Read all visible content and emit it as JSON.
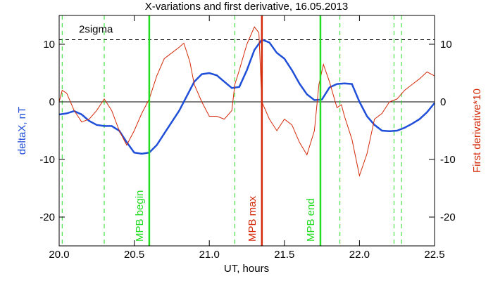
{
  "chart_data": {
    "type": "line",
    "title": "X-variations and first derivative, 16.05.2013",
    "xlabel": "UT, hours",
    "ylabel": "deltaX, nT",
    "y2label": "First derivative*10",
    "xlim": [
      20.0,
      22.5
    ],
    "xticks": [
      {
        "value": 20,
        "label": "20.0"
      },
      20.5,
      {
        "value": 21,
        "label": "21.0"
      },
      21.5,
      {
        "value": 22,
        "label": "22.0"
      },
      22.5
    ],
    "ylim": [
      -25,
      15
    ],
    "yticks": [
      10,
      0,
      -10,
      -20
    ],
    "y2lim": [
      -25,
      15
    ],
    "y2ticks": [
      10,
      0,
      -10,
      -20
    ],
    "series": [
      {
        "name": "deltaX",
        "color": "#1f4fd8",
        "x": [
          20.0,
          20.05,
          20.1,
          20.15,
          20.2,
          20.25,
          20.3,
          20.35,
          20.4,
          20.45,
          20.5,
          20.55,
          20.6,
          20.65,
          20.7,
          20.75,
          20.8,
          20.85,
          20.9,
          20.95,
          21.0,
          21.05,
          21.1,
          21.15,
          21.2,
          21.25,
          21.3,
          21.35,
          21.4,
          21.45,
          21.5,
          21.55,
          21.6,
          21.65,
          21.7,
          21.75,
          21.8,
          21.85,
          21.9,
          21.95,
          22.0,
          22.05,
          22.1,
          22.15,
          22.2,
          22.25,
          22.3,
          22.35,
          22.4,
          22.45,
          22.5
        ],
        "values": [
          -2.2,
          -2.0,
          -1.6,
          -2.2,
          -3.3,
          -4.0,
          -4.2,
          -4.2,
          -5.0,
          -7.0,
          -8.8,
          -9.0,
          -8.8,
          -7.5,
          -5.5,
          -3.5,
          -1.5,
          1.0,
          3.5,
          4.8,
          5.0,
          4.6,
          3.5,
          2.4,
          2.6,
          5.5,
          9.0,
          10.8,
          10.3,
          8.5,
          7.5,
          5.5,
          3.2,
          1.3,
          0.3,
          0.4,
          2.5,
          3.1,
          3.2,
          3.1,
          0.0,
          -2.5,
          -4.0,
          -5.0,
          -5.1,
          -5.0,
          -4.5,
          -3.8,
          -3.0,
          -1.8,
          -0.2
        ]
      },
      {
        "name": "First derivative*10",
        "color": "#d42a0a",
        "axis": "y2",
        "x": [
          20.0,
          20.02,
          20.05,
          20.1,
          20.15,
          20.2,
          20.25,
          20.3,
          20.35,
          20.4,
          20.45,
          20.5,
          20.55,
          20.6,
          20.65,
          20.7,
          20.75,
          20.8,
          20.83,
          20.87,
          20.9,
          20.95,
          21.0,
          21.05,
          21.1,
          21.15,
          21.17,
          21.2,
          21.25,
          21.3,
          21.33,
          21.35,
          21.4,
          21.45,
          21.5,
          21.55,
          21.6,
          21.65,
          21.7,
          21.73,
          21.76,
          21.8,
          21.85,
          21.88,
          21.9,
          21.95,
          22.0,
          22.05,
          22.1,
          22.15,
          22.2,
          22.25,
          22.3,
          22.35,
          22.4,
          22.45,
          22.5
        ],
        "values": [
          0,
          2.0,
          1.5,
          -1.5,
          -3.5,
          -3.0,
          -1.5,
          0.5,
          -1.5,
          -5.0,
          -7.5,
          -5.0,
          -2.0,
          0.5,
          4.5,
          7.5,
          8.5,
          9.5,
          10.2,
          7.0,
          3.0,
          0,
          -2.5,
          -2.5,
          -3.0,
          -1.5,
          3.0,
          5.5,
          10.0,
          13.0,
          12.0,
          0,
          -3.0,
          -5.0,
          -3.0,
          -4.0,
          -7.0,
          -9.2,
          -5.0,
          3.0,
          6.5,
          3.5,
          -1.0,
          -0.5,
          -2.5,
          -6.5,
          -12.8,
          -9.0,
          -3.0,
          -2.0,
          0.0,
          0.5,
          2.0,
          3.0,
          4.0,
          5.2,
          4.5
        ]
      }
    ],
    "dashed_vlines": [
      20.02,
      20.3,
      21.17,
      21.87,
      22.23,
      22.28
    ],
    "dashed_vline_color": "#22dd22",
    "markers": [
      {
        "x": 20.6,
        "label": "MPB begin",
        "color": "#22dd22"
      },
      {
        "x": 21.35,
        "label": "MPB max",
        "color": "#d42a0a"
      },
      {
        "x": 21.74,
        "label": "MPB end",
        "color": "#22dd22"
      }
    ],
    "threshold": {
      "value": 10.8,
      "label": "2sigma"
    },
    "zero_line": 0
  }
}
